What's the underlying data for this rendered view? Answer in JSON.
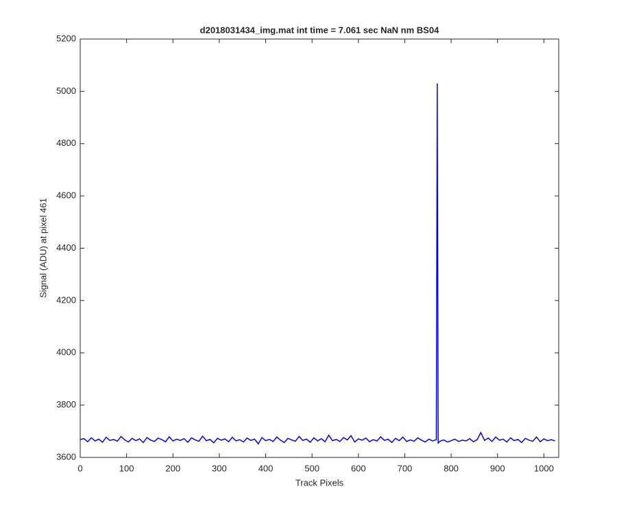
{
  "chart_data": {
    "type": "line",
    "title": "d2018031434_img.mat int time = 7.061 sec  NaN nm BS04",
    "xlabel": "Track Pixels",
    "ylabel": "Signal (ADU) at pixel 461",
    "xlim": [
      0,
      1032
    ],
    "ylim": [
      3600,
      5200
    ],
    "xticks": [
      0,
      100,
      200,
      300,
      400,
      500,
      600,
      700,
      800,
      900,
      1000
    ],
    "yticks": [
      3600,
      3800,
      4000,
      4200,
      4400,
      4600,
      4800,
      5000,
      5200
    ],
    "grid": false,
    "series": [
      {
        "color": "#0000ff",
        "x": [
          0,
          8,
          16,
          24,
          32,
          40,
          48,
          56,
          64,
          72,
          80,
          88,
          96,
          104,
          112,
          120,
          128,
          136,
          144,
          152,
          160,
          168,
          176,
          184,
          192,
          200,
          208,
          216,
          224,
          232,
          240,
          248,
          256,
          264,
          272,
          280,
          288,
          296,
          304,
          312,
          320,
          328,
          336,
          344,
          352,
          360,
          368,
          376,
          384,
          392,
          400,
          408,
          416,
          424,
          432,
          440,
          448,
          456,
          464,
          472,
          480,
          488,
          496,
          504,
          512,
          520,
          528,
          536,
          544,
          552,
          560,
          568,
          576,
          584,
          592,
          600,
          608,
          616,
          624,
          632,
          640,
          648,
          656,
          664,
          672,
          680,
          688,
          696,
          704,
          712,
          720,
          728,
          736,
          744,
          752,
          760,
          768,
          770,
          772,
          776,
          784,
          792,
          800,
          808,
          816,
          824,
          832,
          840,
          848,
          856,
          864,
          872,
          880,
          888,
          896,
          904,
          912,
          920,
          928,
          936,
          944,
          952,
          960,
          968,
          976,
          984,
          992,
          1000,
          1008,
          1016,
          1024
        ],
        "values": [
          3668,
          3672,
          3660,
          3675,
          3663,
          3670,
          3658,
          3677,
          3665,
          3669,
          3662,
          3680,
          3667,
          3659,
          3673,
          3664,
          3671,
          3657,
          3676,
          3666,
          3661,
          3674,
          3668,
          3660,
          3679,
          3663,
          3670,
          3665,
          3672,
          3658,
          3675,
          3667,
          3662,
          3681,
          3664,
          3669,
          3656,
          3673,
          3666,
          3671,
          3660,
          3677,
          3663,
          3668,
          3659,
          3674,
          3665,
          3670,
          3652,
          3676,
          3664,
          3669,
          3661,
          3678,
          3666,
          3657,
          3673,
          3667,
          3662,
          3680,
          3665,
          3670,
          3658,
          3675,
          3663,
          3672,
          3660,
          3685,
          3664,
          3669,
          3661,
          3676,
          3667,
          3683,
          3659,
          3671,
          3666,
          3674,
          3660,
          3668,
          3663,
          3679,
          3665,
          3670,
          3657,
          3673,
          3664,
          3678,
          3661,
          3667,
          3662,
          3675,
          3666,
          3659,
          3670,
          3663,
          3668,
          5030,
          3655,
          3662,
          3667,
          3659,
          3664,
          3670,
          3661,
          3666,
          3663,
          3672,
          3660,
          3668,
          3695,
          3665,
          3674,
          3661,
          3678,
          3666,
          3670,
          3659,
          3675,
          3664,
          3669,
          3657,
          3673,
          3666,
          3662,
          3678,
          3660,
          3671,
          3664,
          3668,
          3663
        ]
      }
    ]
  }
}
